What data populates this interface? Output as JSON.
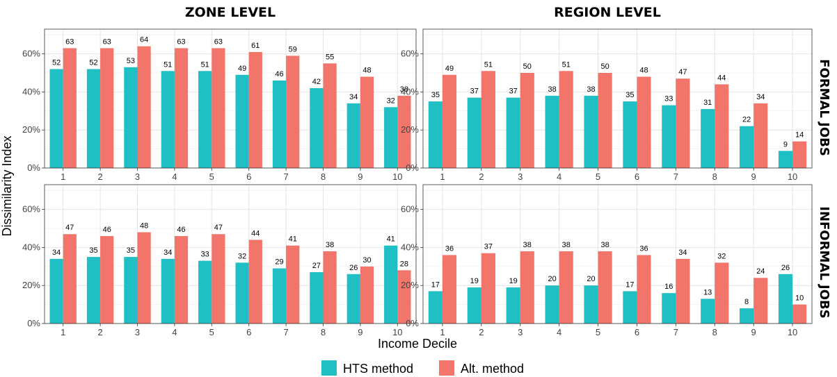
{
  "chart_data": {
    "type": "bar",
    "column_titles": [
      "ZONE LEVEL",
      "REGION LEVEL"
    ],
    "row_titles": [
      "FORMAL JOBS",
      "INFORMAL JOBS"
    ],
    "xlabel": "Income Decile",
    "ylabel": "Dissimilarity Index",
    "categories": [
      "1",
      "2",
      "3",
      "4",
      "5",
      "6",
      "7",
      "8",
      "9",
      "10"
    ],
    "y_ticks": [
      "0%",
      "20%",
      "40%",
      "60%"
    ],
    "ylim": [
      0,
      73
    ],
    "legend": [
      {
        "name": "HTS method",
        "color": "#1FBFC3"
      },
      {
        "name": "Alt. method",
        "color": "#F2756C"
      }
    ],
    "panels": [
      {
        "column": "ZONE LEVEL",
        "row": "FORMAL JOBS",
        "series": [
          {
            "name": "HTS method",
            "values": [
              52,
              52,
              53,
              51,
              51,
              49,
              46,
              42,
              34,
              32
            ]
          },
          {
            "name": "Alt. method",
            "values": [
              63,
              63,
              64,
              63,
              63,
              61,
              59,
              55,
              48,
              38
            ]
          }
        ]
      },
      {
        "column": "REGION LEVEL",
        "row": "FORMAL JOBS",
        "series": [
          {
            "name": "HTS method",
            "values": [
              35,
              37,
              37,
              38,
              38,
              35,
              33,
              31,
              22,
              9
            ]
          },
          {
            "name": "Alt. method",
            "values": [
              49,
              51,
              50,
              51,
              50,
              48,
              47,
              44,
              34,
              14
            ]
          }
        ]
      },
      {
        "column": "ZONE LEVEL",
        "row": "INFORMAL JOBS",
        "series": [
          {
            "name": "HTS method",
            "values": [
              34,
              35,
              35,
              34,
              33,
              32,
              29,
              27,
              26,
              41
            ]
          },
          {
            "name": "Alt. method",
            "values": [
              47,
              46,
              48,
              46,
              47,
              44,
              41,
              38,
              30,
              28
            ]
          }
        ]
      },
      {
        "column": "REGION LEVEL",
        "row": "INFORMAL JOBS",
        "series": [
          {
            "name": "HTS method",
            "values": [
              17,
              19,
              19,
              20,
              20,
              17,
              16,
              13,
              8,
              26
            ]
          },
          {
            "name": "Alt. method",
            "values": [
              36,
              37,
              38,
              38,
              38,
              36,
              34,
              32,
              24,
              10
            ]
          }
        ]
      }
    ]
  }
}
